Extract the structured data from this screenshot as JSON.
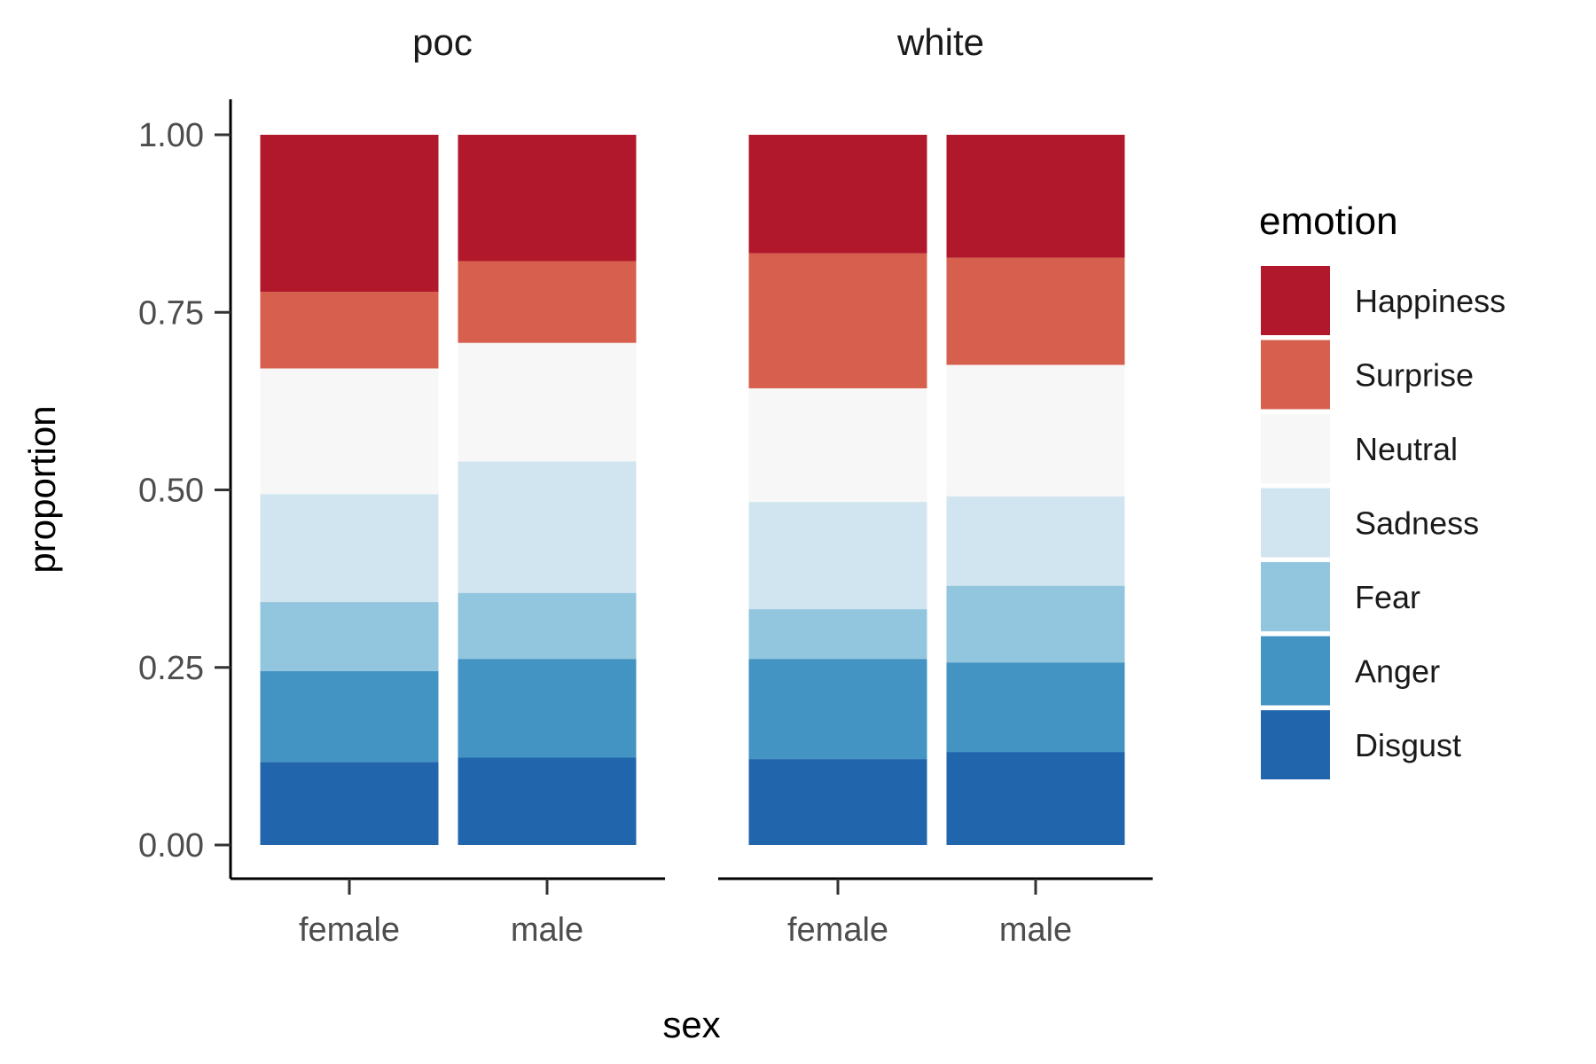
{
  "chart_data": {
    "type": "bar",
    "stacked": true,
    "facet_variable": "race",
    "facets": [
      "poc",
      "white"
    ],
    "categories": [
      "female",
      "male"
    ],
    "xlabel": "sex",
    "ylabel": "proportion",
    "ylim": [
      0,
      1
    ],
    "yticks": [
      0,
      0.25,
      0.5,
      0.75,
      1
    ],
    "ytick_labels": [
      "0.00",
      "0.25",
      "0.50",
      "0.75",
      "1.00"
    ],
    "legend": {
      "title": "emotion",
      "position": "right"
    },
    "series": [
      {
        "name": "Happiness",
        "color": "#b2182b",
        "values": {
          "poc": [
            0.221,
            0.178
          ],
          "white": [
            0.167,
            0.173
          ]
        }
      },
      {
        "name": "Surprise",
        "color": "#d6604d",
        "values": {
          "poc": [
            0.108,
            0.115
          ],
          "white": [
            0.19,
            0.151
          ]
        }
      },
      {
        "name": "Neutral",
        "color": "#f7f7f7",
        "values": {
          "poc": [
            0.177,
            0.167
          ],
          "white": [
            0.16,
            0.185
          ]
        }
      },
      {
        "name": "Sadness",
        "color": "#d1e5f0",
        "values": {
          "poc": [
            0.152,
            0.185
          ],
          "white": [
            0.151,
            0.126
          ]
        }
      },
      {
        "name": "Fear",
        "color": "#92c5de",
        "values": {
          "poc": [
            0.097,
            0.093
          ],
          "white": [
            0.07,
            0.108
          ]
        }
      },
      {
        "name": "Anger",
        "color": "#4393c3",
        "values": {
          "poc": [
            0.128,
            0.139
          ],
          "white": [
            0.141,
            0.126
          ]
        }
      },
      {
        "name": "Disgust",
        "color": "#2166ac",
        "values": {
          "poc": [
            0.117,
            0.123
          ],
          "white": [
            0.121,
            0.131
          ]
        }
      }
    ]
  }
}
